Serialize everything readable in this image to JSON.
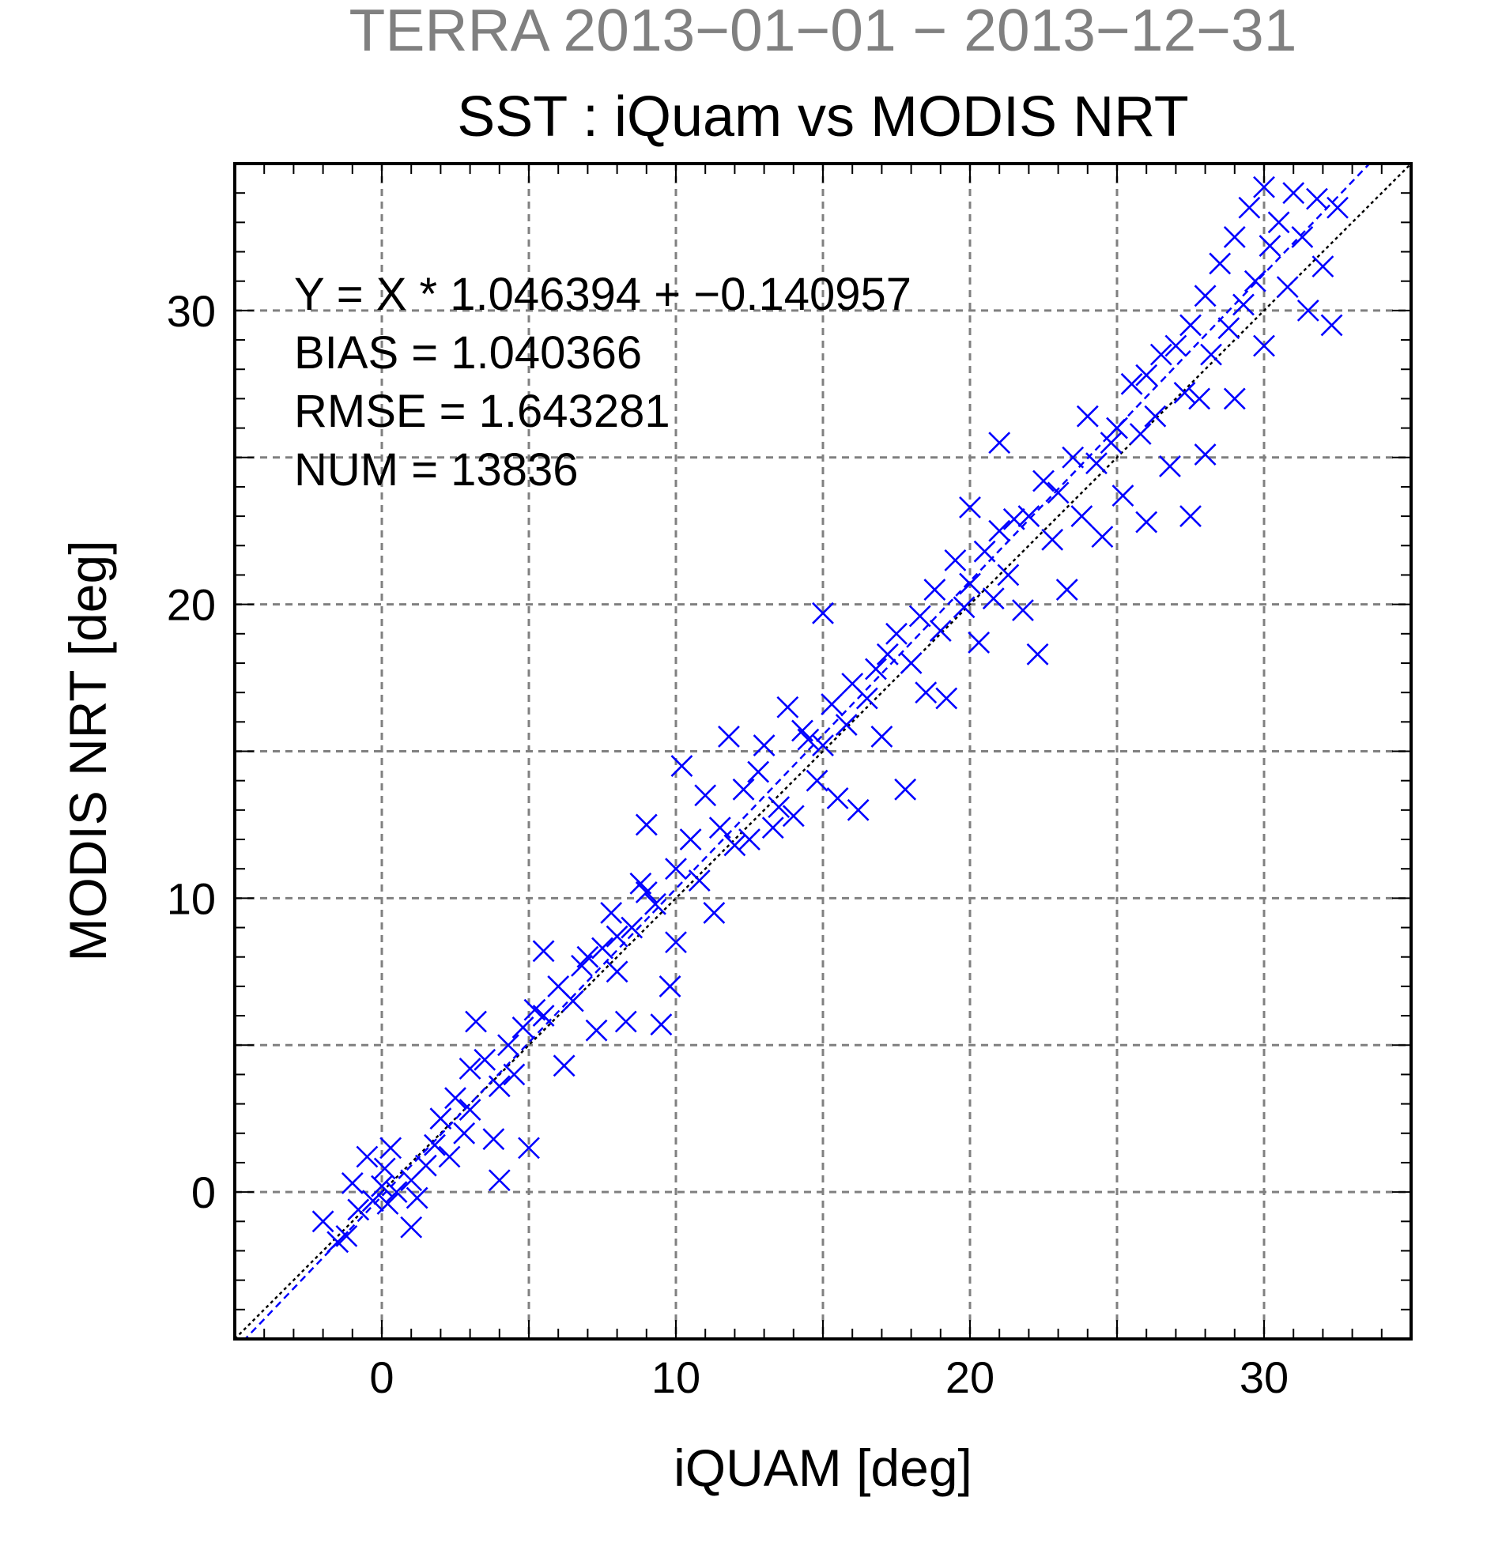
{
  "chart_data": {
    "type": "scatter",
    "title": "TERRA  2013−01−01 − 2013−12−31",
    "subtitle": "SST : iQuam vs MODIS NRT",
    "xlabel": "iQUAM [deg]",
    "ylabel": "MODIS NRT [deg]",
    "xlim": [
      -5,
      35
    ],
    "ylim": [
      -5,
      35
    ],
    "x_ticks": [
      0,
      10,
      20,
      30
    ],
    "y_ticks": [
      0,
      10,
      20,
      30
    ],
    "x_tick_labels": [
      "0",
      "10",
      "20",
      "30"
    ],
    "y_tick_labels": [
      "0",
      "10",
      "20",
      "30"
    ],
    "grid": true,
    "grid_step": 5,
    "minor_tick_step": 1,
    "marker": "x",
    "colors": {
      "points": "#0000ff",
      "fit_line": "#0000ff",
      "identity_line": "#000000",
      "title": "#808080",
      "grid": "#808080"
    },
    "fit": {
      "slope": 1.046394,
      "intercept": -0.140957
    },
    "identity_line": true,
    "stats": [
      "Y = X * 1.046394 + −0.140957",
      "BIAS = 1.040366",
      "RMSE = 1.643281",
      "NUM = 13836"
    ],
    "points": [
      [
        -2.0,
        -1.0
      ],
      [
        -1.5,
        -1.7
      ],
      [
        -1.2,
        -1.5
      ],
      [
        -0.8,
        -0.6
      ],
      [
        -1.0,
        0.3
      ],
      [
        -0.5,
        1.2
      ],
      [
        -0.3,
        -0.3
      ],
      [
        0.0,
        0.2
      ],
      [
        0.1,
        0.8
      ],
      [
        0.2,
        -0.4
      ],
      [
        0.3,
        1.5
      ],
      [
        0.5,
        0.0
      ],
      [
        1.0,
        0.4
      ],
      [
        1.2,
        -0.2
      ],
      [
        1.0,
        -1.2
      ],
      [
        1.5,
        0.9
      ],
      [
        1.8,
        1.6
      ],
      [
        2.0,
        2.5
      ],
      [
        2.3,
        1.2
      ],
      [
        2.5,
        3.2
      ],
      [
        2.8,
        2.0
      ],
      [
        3.0,
        2.8
      ],
      [
        3.0,
        4.2
      ],
      [
        3.2,
        5.8
      ],
      [
        3.5,
        4.5
      ],
      [
        3.8,
        1.8
      ],
      [
        4.0,
        3.6
      ],
      [
        4.0,
        0.4
      ],
      [
        4.3,
        5.0
      ],
      [
        4.5,
        4.0
      ],
      [
        4.8,
        5.6
      ],
      [
        5.0,
        1.5
      ],
      [
        5.2,
        6.2
      ],
      [
        5.5,
        8.2
      ],
      [
        5.5,
        6.0
      ],
      [
        6.0,
        7.0
      ],
      [
        6.2,
        4.3
      ],
      [
        6.5,
        6.5
      ],
      [
        6.8,
        7.7
      ],
      [
        7.0,
        8.0
      ],
      [
        7.3,
        5.5
      ],
      [
        7.5,
        8.3
      ],
      [
        7.8,
        9.5
      ],
      [
        8.0,
        7.5
      ],
      [
        8.0,
        8.7
      ],
      [
        8.3,
        5.8
      ],
      [
        8.5,
        9.0
      ],
      [
        8.8,
        10.5
      ],
      [
        9.0,
        10.2
      ],
      [
        9.0,
        12.5
      ],
      [
        9.3,
        9.8
      ],
      [
        9.5,
        5.7
      ],
      [
        9.8,
        7.0
      ],
      [
        10.0,
        11.0
      ],
      [
        10.0,
        8.5
      ],
      [
        10.2,
        14.5
      ],
      [
        10.5,
        12.0
      ],
      [
        10.8,
        10.6
      ],
      [
        11.0,
        13.5
      ],
      [
        11.3,
        9.5
      ],
      [
        11.5,
        12.4
      ],
      [
        11.8,
        15.5
      ],
      [
        12.0,
        11.8
      ],
      [
        12.3,
        13.7
      ],
      [
        12.5,
        12.0
      ],
      [
        12.8,
        14.3
      ],
      [
        13.0,
        15.2
      ],
      [
        13.3,
        12.4
      ],
      [
        13.5,
        13.1
      ],
      [
        13.8,
        16.5
      ],
      [
        14.0,
        12.8
      ],
      [
        14.3,
        15.7
      ],
      [
        14.5,
        15.4
      ],
      [
        14.8,
        14.0
      ],
      [
        15.0,
        19.7
      ],
      [
        15.0,
        15.2
      ],
      [
        15.3,
        16.6
      ],
      [
        15.5,
        13.4
      ],
      [
        15.8,
        15.9
      ],
      [
        16.0,
        17.3
      ],
      [
        16.2,
        13.0
      ],
      [
        16.5,
        16.8
      ],
      [
        16.8,
        17.8
      ],
      [
        17.0,
        15.5
      ],
      [
        17.2,
        18.3
      ],
      [
        17.5,
        19.0
      ],
      [
        17.8,
        13.7
      ],
      [
        18.0,
        18.0
      ],
      [
        18.3,
        19.6
      ],
      [
        18.5,
        17.0
      ],
      [
        18.8,
        20.5
      ],
      [
        19.0,
        19.1
      ],
      [
        19.2,
        16.8
      ],
      [
        19.5,
        21.5
      ],
      [
        19.8,
        19.9
      ],
      [
        20.0,
        23.3
      ],
      [
        20.0,
        20.7
      ],
      [
        20.3,
        18.7
      ],
      [
        20.5,
        21.8
      ],
      [
        20.8,
        20.2
      ],
      [
        21.0,
        22.5
      ],
      [
        21.0,
        25.5
      ],
      [
        21.3,
        21.0
      ],
      [
        21.5,
        22.9
      ],
      [
        21.8,
        19.8
      ],
      [
        22.0,
        23.0
      ],
      [
        22.3,
        18.3
      ],
      [
        22.5,
        24.2
      ],
      [
        22.8,
        22.2
      ],
      [
        23.0,
        23.8
      ],
      [
        23.3,
        20.5
      ],
      [
        23.5,
        25.0
      ],
      [
        23.8,
        23.0
      ],
      [
        24.0,
        26.4
      ],
      [
        24.3,
        24.8
      ],
      [
        24.5,
        22.3
      ],
      [
        24.8,
        25.5
      ],
      [
        25.0,
        26.0
      ],
      [
        25.2,
        23.7
      ],
      [
        25.5,
        27.5
      ],
      [
        25.8,
        25.8
      ],
      [
        26.0,
        27.8
      ],
      [
        26.0,
        22.8
      ],
      [
        26.3,
        26.4
      ],
      [
        26.5,
        28.5
      ],
      [
        26.8,
        24.7
      ],
      [
        27.0,
        28.8
      ],
      [
        27.3,
        27.2
      ],
      [
        27.5,
        23.0
      ],
      [
        27.5,
        29.5
      ],
      [
        27.8,
        27.0
      ],
      [
        28.0,
        30.5
      ],
      [
        28.0,
        25.1
      ],
      [
        28.2,
        28.5
      ],
      [
        28.5,
        31.6
      ],
      [
        28.8,
        29.4
      ],
      [
        29.0,
        32.5
      ],
      [
        29.0,
        27.0
      ],
      [
        29.3,
        30.2
      ],
      [
        29.5,
        33.5
      ],
      [
        29.7,
        31.0
      ],
      [
        30.0,
        34.2
      ],
      [
        30.0,
        28.8
      ],
      [
        30.2,
        32.2
      ],
      [
        30.5,
        33.0
      ],
      [
        30.8,
        30.8
      ],
      [
        31.0,
        34.0
      ],
      [
        31.3,
        32.5
      ],
      [
        31.5,
        30.0
      ],
      [
        31.8,
        33.8
      ],
      [
        32.0,
        31.5
      ],
      [
        32.3,
        29.5
      ],
      [
        32.5,
        33.5
      ]
    ]
  }
}
